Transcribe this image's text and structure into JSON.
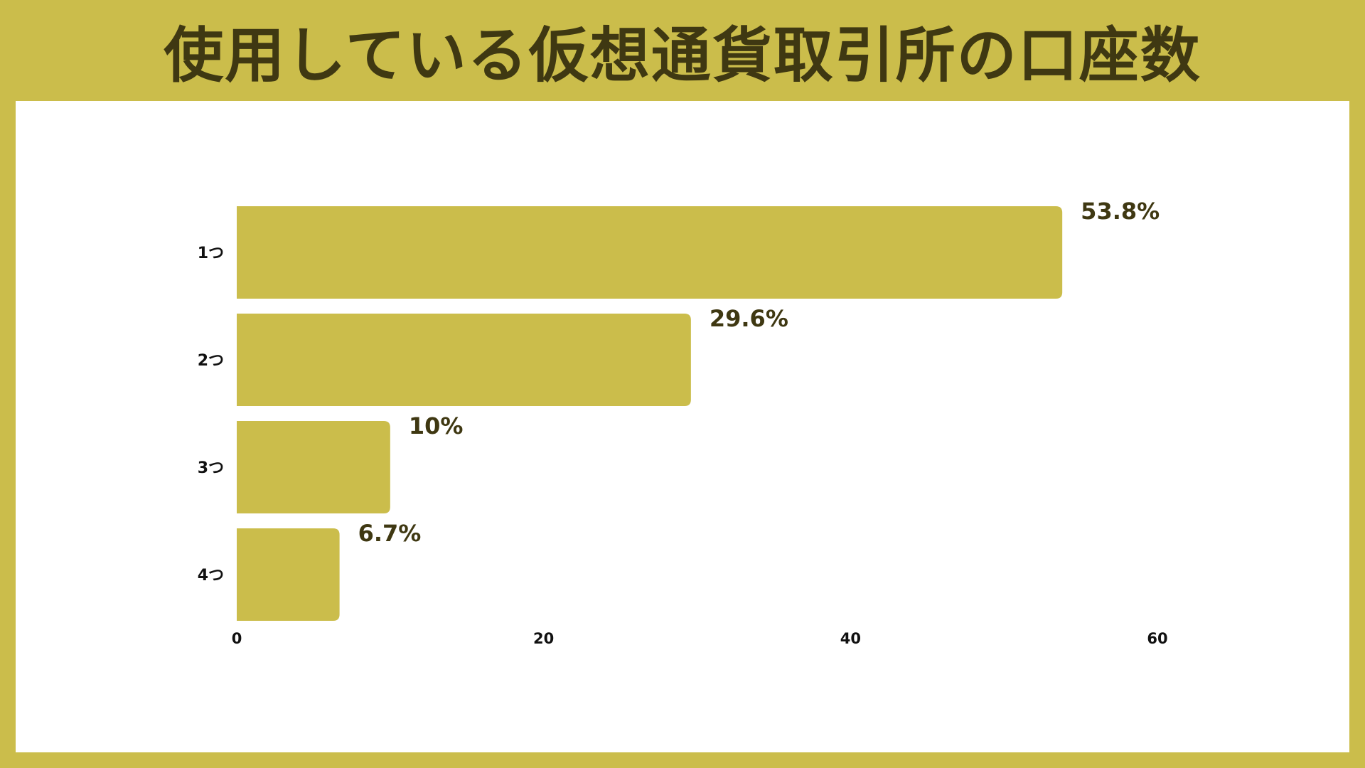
{
  "header": {
    "title": "使用している仮想通貨取引所の口座数"
  },
  "colors": {
    "background": "#cbbd4b",
    "bar": "#cbbd4b",
    "title_text": "#3f3812",
    "value_text": "#3f3812",
    "panel": "#ffffff"
  },
  "chart_data": {
    "type": "bar",
    "orientation": "horizontal",
    "title": "使用している仮想通貨取引所の口座数",
    "xlabel": "",
    "ylabel": "",
    "categories": [
      "1つ",
      "2つ",
      "3つ",
      "4つ"
    ],
    "values": [
      53.8,
      29.6,
      10,
      6.7
    ],
    "value_labels": [
      "53.8%",
      "29.6%",
      "10%",
      "6.7%"
    ],
    "xlim": [
      0,
      60
    ],
    "x_ticks": [
      0,
      20,
      40,
      60
    ],
    "x_tick_labels": [
      "0",
      "20",
      "40",
      "60"
    ],
    "grid": false,
    "legend": "none"
  }
}
